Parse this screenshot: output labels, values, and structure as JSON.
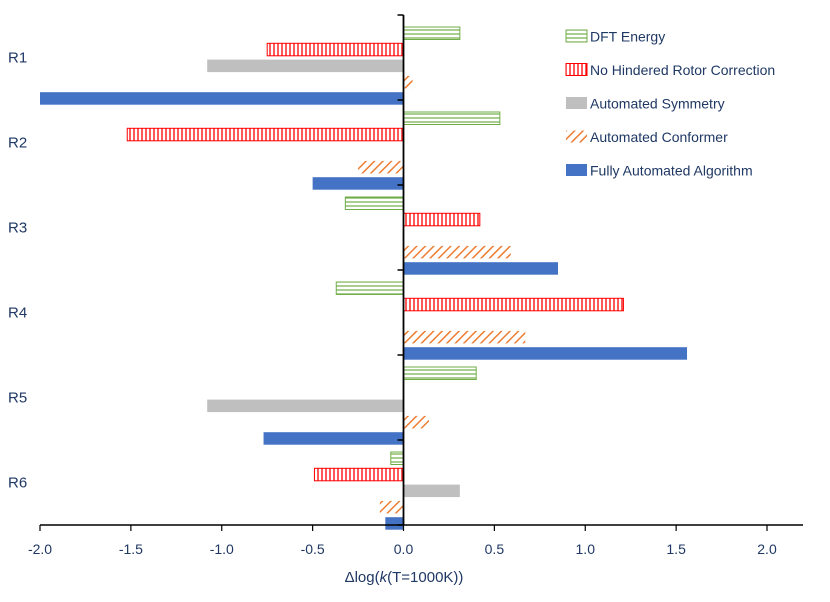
{
  "chart_data": {
    "type": "bar",
    "orientation": "horizontal",
    "title": "",
    "xlabel_parts": [
      "Δlog(",
      "k",
      "(T=1000K))"
    ],
    "ylabel": "",
    "xlim": [
      -2.0,
      2.0
    ],
    "xticks": [
      -2.0,
      -1.5,
      -1.0,
      -0.5,
      0.0,
      0.5,
      1.0,
      1.5,
      2.0
    ],
    "xtick_labels": [
      "-2.0",
      "-1.5",
      "-1.0",
      "-0.5",
      "0.0",
      "0.5",
      "1.0",
      "1.5",
      "2.0"
    ],
    "grid": false,
    "legend_position": "top-right",
    "categories": [
      "R1",
      "R2",
      "R3",
      "R4",
      "R5",
      "R6"
    ],
    "series": [
      {
        "name": "DFT Energy",
        "pattern": "hlines",
        "color": "#70ad47",
        "values": [
          0.31,
          0.53,
          -0.32,
          -0.37,
          0.4,
          -0.07
        ]
      },
      {
        "name": "No Hindered Rotor Correction",
        "pattern": "vlines",
        "color": "#ff0000",
        "values": [
          -0.75,
          -1.52,
          0.42,
          1.21,
          0.0,
          -0.49
        ]
      },
      {
        "name": "Automated Symmetry",
        "pattern": "solid",
        "color": "#bfbfbf",
        "values": [
          -1.08,
          0.0,
          0.0,
          0.0,
          -1.08,
          0.31
        ]
      },
      {
        "name": "Automated Conformer",
        "pattern": "diagonal",
        "color": "#ed7d31",
        "values": [
          0.05,
          -0.25,
          0.59,
          0.67,
          0.14,
          -0.13
        ]
      },
      {
        "name": "Fully Automated Algorithm",
        "pattern": "solid",
        "color": "#4472c4",
        "values": [
          -2.0,
          -0.5,
          0.85,
          1.56,
          -0.77,
          -0.1
        ]
      }
    ]
  }
}
